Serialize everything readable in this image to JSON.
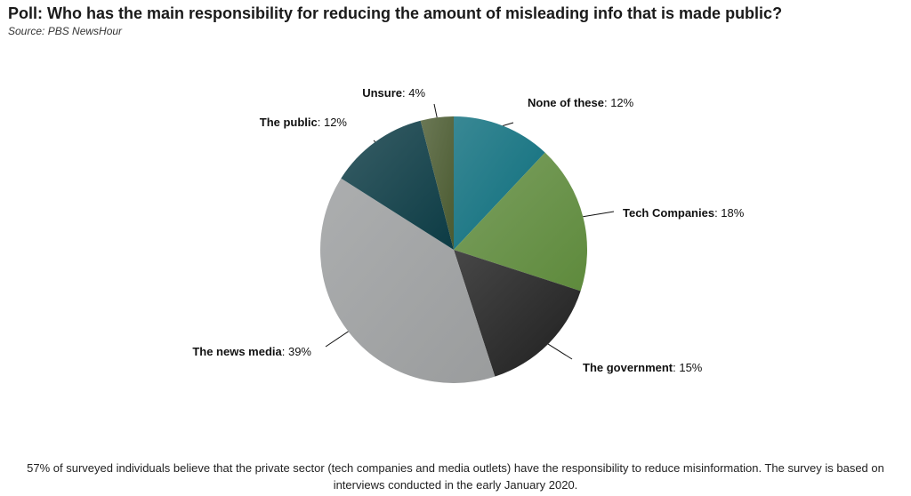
{
  "header": {
    "title": "Poll: Who has the main responsibility for reducing the amount of misleading info that is made public?",
    "source": "Source: PBS NewsHour"
  },
  "chart_data": {
    "type": "pie",
    "categories": [
      "None of these",
      "Tech Companies",
      "The government",
      "The news media",
      "The public",
      "Unsure"
    ],
    "values": [
      12,
      18,
      15,
      39,
      12,
      4
    ],
    "value_labels": [
      "12%",
      "18%",
      "15%",
      "39%",
      "12%",
      "4%"
    ],
    "colors": [
      "#0d6e7d",
      "#5e8a3c",
      "#1f1f1f",
      "#9a9c9d",
      "#0c3b44",
      "#4a5a30"
    ],
    "start_angle": "12 o'clock",
    "direction": "clockwise",
    "legend": "none",
    "title": "Poll: Who has the main responsibility for reducing the amount of misleading info that is made public?"
  },
  "footer": {
    "note": "57% of surveyed individuals believe that the private sector (tech companies and media outlets) have the responsibility to reduce misinformation. The survey is based on interviews conducted in the early January 2020."
  }
}
